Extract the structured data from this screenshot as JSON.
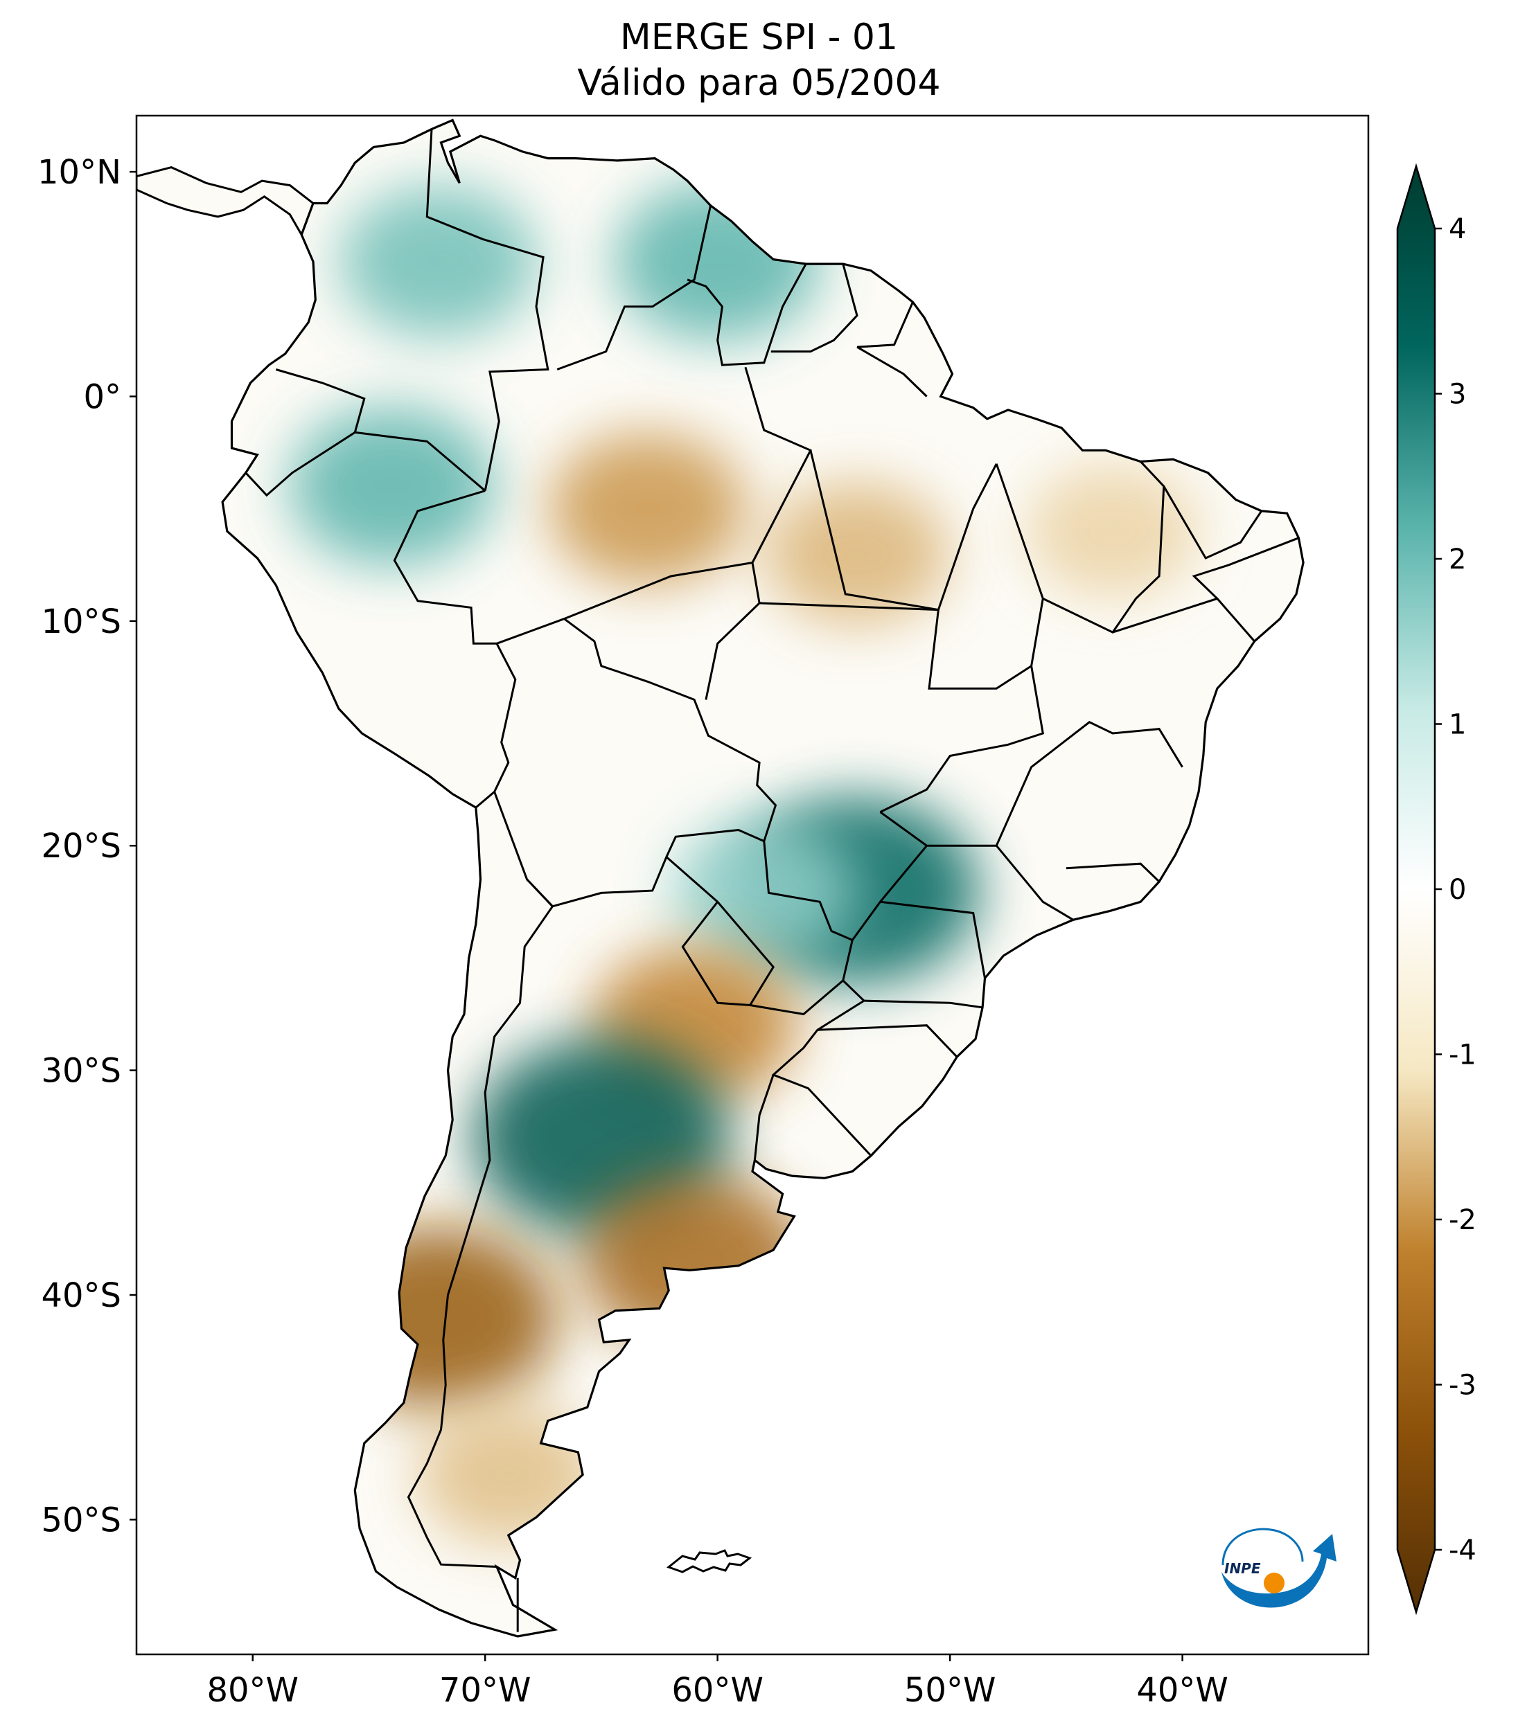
{
  "title": {
    "line1": "MERGE   SPI - 01",
    "line2": "Válido para 05/2004"
  },
  "map": {
    "lon_range": [
      -85,
      -32
    ],
    "lat_range": [
      -56,
      12.5
    ],
    "lon_ticks": [
      {
        "value": -80,
        "label": "80°W"
      },
      {
        "value": -70,
        "label": "70°W"
      },
      {
        "value": -60,
        "label": "60°W"
      },
      {
        "value": -50,
        "label": "50°W"
      },
      {
        "value": -40,
        "label": "40°W"
      }
    ],
    "lat_ticks": [
      {
        "value": 10,
        "label": "10°N"
      },
      {
        "value": 0,
        "label": "0°"
      },
      {
        "value": -10,
        "label": "10°S"
      },
      {
        "value": -20,
        "label": "20°S"
      },
      {
        "value": -30,
        "label": "30°S"
      },
      {
        "value": -40,
        "label": "40°S"
      },
      {
        "value": -50,
        "label": "50°S"
      }
    ],
    "spi_anomalies": [
      {
        "region": "Colombia / Venezuela",
        "lon": -72,
        "lat": 6,
        "spi": 1.8
      },
      {
        "region": "Guyana",
        "lon": -60,
        "lat": 6,
        "spi": 2.0
      },
      {
        "region": "Western Amazon",
        "lon": -74,
        "lat": -4,
        "spi": 2.0
      },
      {
        "region": "Central Amazon",
        "lon": -63,
        "lat": -5,
        "spi": -1.8
      },
      {
        "region": "Eastern Amazon",
        "lon": -54,
        "lat": -7,
        "spi": -1.5
      },
      {
        "region": "Northeast Brazil",
        "lon": -43,
        "lat": -6,
        "spi": -1.2
      },
      {
        "region": "Mato Grosso do Sul / Paraná",
        "lon": -54,
        "lat": -22,
        "spi": 3.0
      },
      {
        "region": "Paraguay",
        "lon": -58,
        "lat": -22,
        "spi": 1.5
      },
      {
        "region": "Chaco / Northern Argentina",
        "lon": -61,
        "lat": -28,
        "spi": -2.0
      },
      {
        "region": "Central Argentina",
        "lon": -65,
        "lat": -33,
        "spi": 3.3
      },
      {
        "region": "Buenos Aires coast",
        "lon": -61,
        "lat": -38.5,
        "spi": -2.5
      },
      {
        "region": "Southern Chile",
        "lon": -72,
        "lat": -41,
        "spi": -2.8
      },
      {
        "region": "Patagonia",
        "lon": -69,
        "lat": -48,
        "spi": -1.4
      }
    ]
  },
  "colorbar": {
    "ticks": [
      4,
      3,
      2,
      1,
      0,
      -1,
      -2,
      -3,
      -4
    ],
    "labels": [
      "4",
      "3",
      "2",
      "1",
      "0",
      "-1",
      "-2",
      "-3",
      "-4"
    ],
    "stops": [
      {
        "v": -4,
        "c": "#543005"
      },
      {
        "v": -3,
        "c": "#8c510a"
      },
      {
        "v": -2,
        "c": "#bf812d"
      },
      {
        "v": -1,
        "c": "#f6e8c3"
      },
      {
        "v": 0,
        "c": "#ffffff"
      },
      {
        "v": 1,
        "c": "#c7eae5"
      },
      {
        "v": 2,
        "c": "#5ab4ac"
      },
      {
        "v": 3,
        "c": "#01665e"
      },
      {
        "v": 4,
        "c": "#003c30"
      }
    ]
  },
  "logo": {
    "text": "INPE",
    "orange": "#f28c00",
    "blue": "#0a72b8"
  }
}
